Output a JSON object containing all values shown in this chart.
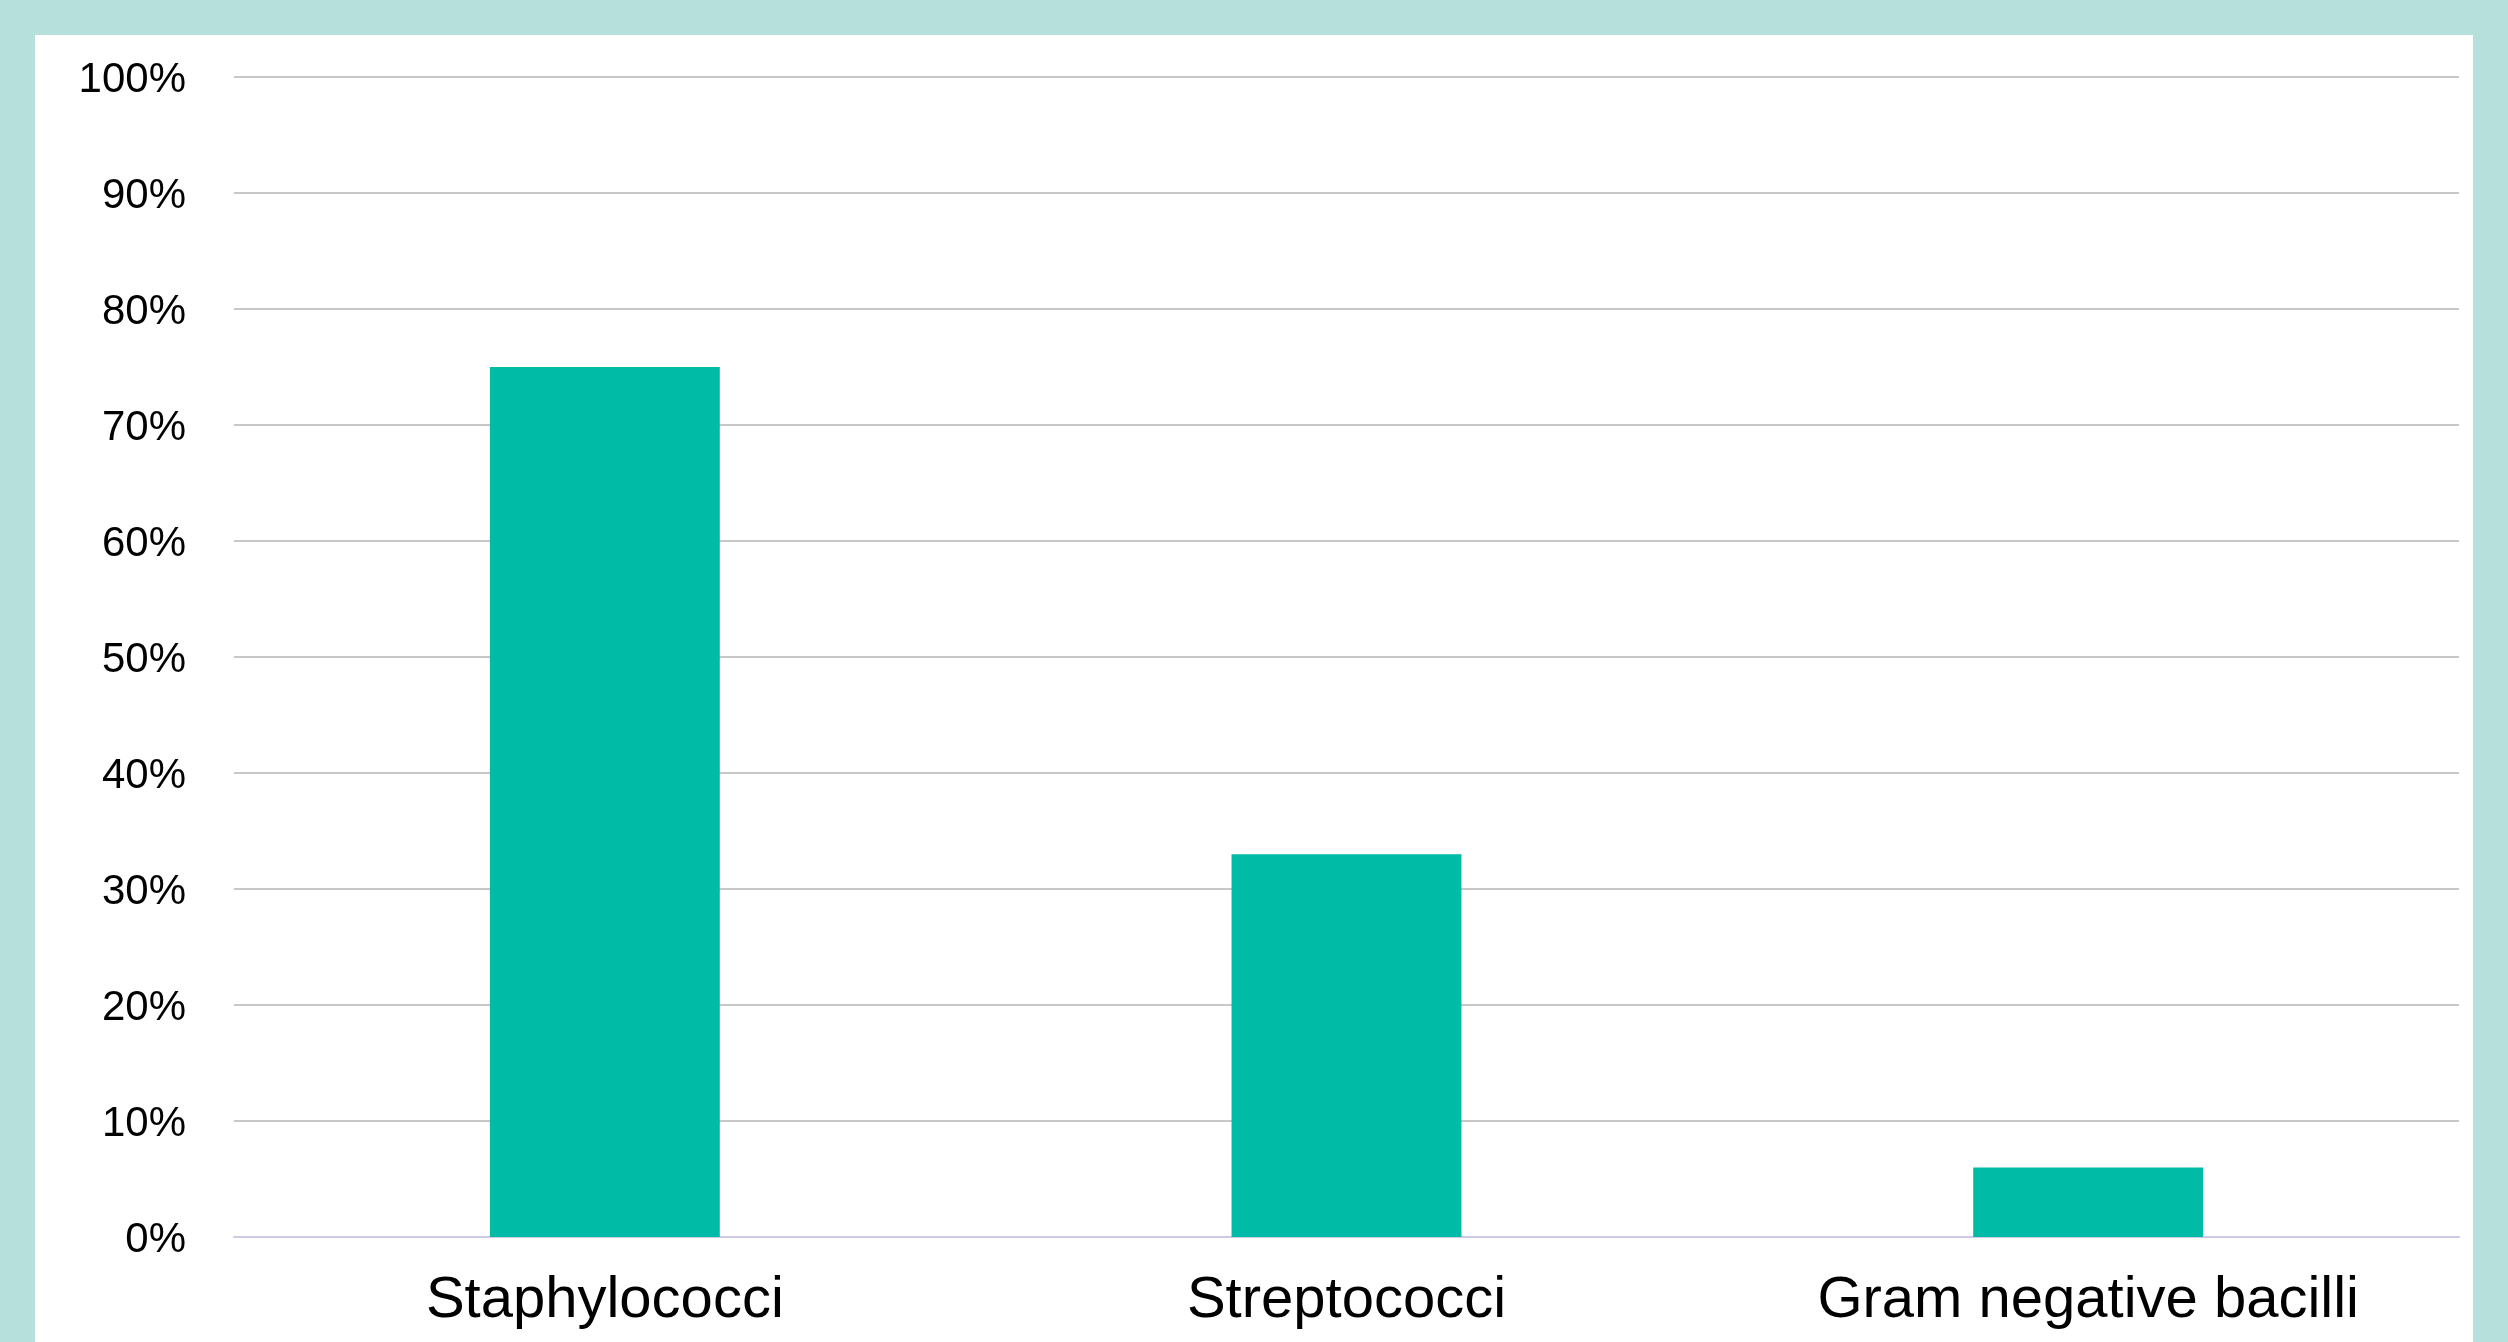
{
  "chart_data": {
    "type": "bar",
    "categories": [
      "Staphylococci",
      "Streptococci",
      "Gram negative bacilli"
    ],
    "values": [
      75,
      33,
      6
    ],
    "color": "#00bba5",
    "ylim": [
      0,
      100
    ],
    "yticks": [
      {
        "value": 0,
        "label": "0%"
      },
      {
        "value": 10,
        "label": "10%"
      },
      {
        "value": 20,
        "label": "20%"
      },
      {
        "value": 30,
        "label": "30%"
      },
      {
        "value": 40,
        "label": "40%"
      },
      {
        "value": 50,
        "label": "50%"
      },
      {
        "value": 60,
        "label": "60%"
      },
      {
        "value": 70,
        "label": "70%"
      },
      {
        "value": 80,
        "label": "80%"
      },
      {
        "value": 90,
        "label": "90%"
      },
      {
        "value": 100,
        "label": "100%"
      }
    ],
    "grid": "y"
  }
}
